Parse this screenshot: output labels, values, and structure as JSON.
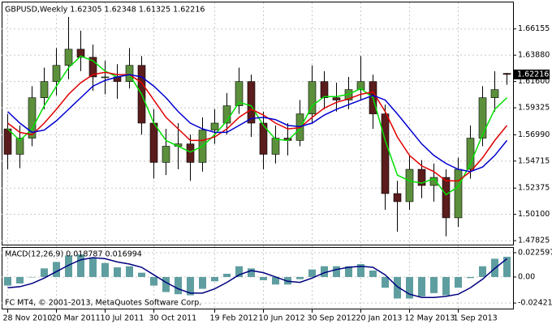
{
  "chart_data": [
    {
      "type": "candlestick",
      "title": "GBPUSD,Weekly  1.62305 1.62348 1.61325 1.62216",
      "categories": [
        "28 Nov 2010",
        null,
        null,
        null,
        "20 Mar 2011",
        null,
        null,
        null,
        "10 Jul 2011",
        null,
        null,
        null,
        "30 Oct 2011",
        null,
        null,
        null,
        null,
        "19 Feb 2012",
        null,
        null,
        null,
        "10 Jun 2012",
        null,
        null,
        null,
        "30 Sep 2012",
        null,
        null,
        null,
        "20 Jan 2013",
        null,
        null,
        null,
        "12 May 2013",
        null,
        null,
        null,
        "1 Sep 2013",
        null,
        null,
        null,
        null
      ],
      "candles": [
        [
          1.575,
          1.588,
          1.54,
          1.553
        ],
        [
          1.553,
          1.578,
          1.541,
          1.567
        ],
        [
          1.567,
          1.612,
          1.56,
          1.602
        ],
        [
          1.602,
          1.628,
          1.592,
          1.616
        ],
        [
          1.616,
          1.645,
          1.604,
          1.63
        ],
        [
          1.63,
          1.672,
          1.618,
          1.644
        ],
        [
          1.644,
          1.66,
          1.625,
          1.637
        ],
        [
          1.637,
          1.648,
          1.608,
          1.62
        ],
        [
          1.62,
          1.634,
          1.605,
          1.62
        ],
        [
          1.62,
          1.631,
          1.601,
          1.616
        ],
        [
          1.616,
          1.645,
          1.61,
          1.63
        ],
        [
          1.63,
          1.638,
          1.57,
          1.58
        ],
        [
          1.58,
          1.592,
          1.532,
          1.546
        ],
        [
          1.546,
          1.575,
          1.535,
          1.56
        ],
        [
          1.56,
          1.58,
          1.54,
          1.562
        ],
        [
          1.562,
          1.57,
          1.53,
          1.546
        ],
        [
          1.546,
          1.585,
          1.538,
          1.574
        ],
        [
          1.574,
          1.592,
          1.562,
          1.58
        ],
        [
          1.58,
          1.606,
          1.57,
          1.595
        ],
        [
          1.595,
          1.628,
          1.588,
          1.616
        ],
        [
          1.616,
          1.622,
          1.568,
          1.58
        ],
        [
          1.58,
          1.59,
          1.54,
          1.553
        ],
        [
          1.553,
          1.578,
          1.545,
          1.567
        ],
        [
          1.567,
          1.58,
          1.552,
          1.565
        ],
        [
          1.565,
          1.6,
          1.56,
          1.588
        ],
        [
          1.588,
          1.63,
          1.58,
          1.616
        ],
        [
          1.616,
          1.625,
          1.592,
          1.602
        ],
        [
          1.602,
          1.615,
          1.59,
          1.6
        ],
        [
          1.6,
          1.62,
          1.592,
          1.609
        ],
        [
          1.609,
          1.638,
          1.6,
          1.616
        ],
        [
          1.616,
          1.622,
          1.575,
          1.588
        ],
        [
          1.588,
          1.596,
          1.505,
          1.519
        ],
        [
          1.519,
          1.53,
          1.486,
          1.512
        ],
        [
          1.512,
          1.552,
          1.505,
          1.54
        ],
        [
          1.54,
          1.548,
          1.515,
          1.526
        ],
        [
          1.526,
          1.545,
          1.512,
          1.533
        ],
        [
          1.533,
          1.54,
          1.482,
          1.498
        ],
        [
          1.498,
          1.55,
          1.49,
          1.54
        ],
        [
          1.54,
          1.578,
          1.532,
          1.567
        ],
        [
          1.567,
          1.612,
          1.56,
          1.602
        ],
        [
          1.602,
          1.625,
          1.59,
          1.609
        ],
        [
          1.62305,
          1.62348,
          1.61325,
          1.62216
        ]
      ],
      "up_color": "#5c8f3c",
      "down_color": "#5a1c1c",
      "series": [
        {
          "color": "#00e000",
          "values": [
            1.575,
            1.565,
            1.575,
            1.595,
            1.612,
            1.628,
            1.638,
            1.634,
            1.625,
            1.62,
            1.622,
            1.605,
            1.58,
            1.565,
            1.56,
            1.555,
            1.56,
            1.57,
            1.582,
            1.598,
            1.595,
            1.578,
            1.566,
            1.565,
            1.575,
            1.595,
            1.603,
            1.603,
            1.605,
            1.61,
            1.602,
            1.565,
            1.535,
            1.53,
            1.528,
            1.532,
            1.518,
            1.525,
            1.545,
            1.57,
            1.592,
            1.602
          ]
        },
        {
          "color": "#e00000",
          "values": [
            1.58,
            1.572,
            1.57,
            1.58,
            1.592,
            1.605,
            1.615,
            1.622,
            1.624,
            1.622,
            1.622,
            1.615,
            1.6,
            1.585,
            1.575,
            1.565,
            1.565,
            1.568,
            1.575,
            1.585,
            1.592,
            1.587,
            1.58,
            1.575,
            1.576,
            1.585,
            1.593,
            1.598,
            1.601,
            1.605,
            1.607,
            1.59,
            1.568,
            1.552,
            1.543,
            1.538,
            1.53,
            1.53,
            1.538,
            1.55,
            1.565,
            1.578
          ]
        },
        {
          "color": "#0000d0",
          "values": [
            1.59,
            1.58,
            1.572,
            1.574,
            1.582,
            1.592,
            1.602,
            1.612,
            1.617,
            1.62,
            1.622,
            1.62,
            1.612,
            1.602,
            1.59,
            1.58,
            1.575,
            1.572,
            1.572,
            1.578,
            1.584,
            1.585,
            1.583,
            1.578,
            1.577,
            1.58,
            1.587,
            1.592,
            1.596,
            1.6,
            1.604,
            1.6,
            1.588,
            1.575,
            1.562,
            1.552,
            1.545,
            1.54,
            1.538,
            1.542,
            1.552,
            1.565
          ]
        }
      ],
      "ylim": [
        1.4748,
        1.6845
      ],
      "yticks": [
        {
          "value": 1.66155,
          "label": "1.66155"
        },
        {
          "value": 1.6388,
          "label": "1.63880"
        },
        {
          "value": 1.616,
          "label": "1.61600"
        },
        {
          "value": 1.59325,
          "label": "1.59325"
        },
        {
          "value": 1.5699,
          "label": "1.56990"
        },
        {
          "value": 1.54715,
          "label": "1.54715"
        },
        {
          "value": 1.52375,
          "label": "1.52375"
        },
        {
          "value": 1.501,
          "label": "1.50100"
        },
        {
          "value": 1.47825,
          "label": "1.47825"
        }
      ],
      "price_label": {
        "value": 1.62216,
        "label": "1.62216"
      },
      "grid": true
    },
    {
      "type": "macd",
      "title": "MACD(12,26,9) 0.018787 0.016994",
      "values": [
        -0.008,
        -0.006,
        0.0,
        0.008,
        0.014,
        0.02,
        0.021,
        0.018,
        0.013,
        0.009,
        0.01,
        0.004,
        -0.008,
        -0.014,
        -0.016,
        -0.017,
        -0.011,
        -0.004,
        0.003,
        0.01,
        0.008,
        -0.003,
        -0.007,
        -0.007,
        -0.002,
        0.007,
        0.01,
        0.01,
        0.01,
        0.012,
        0.006,
        -0.01,
        -0.02,
        -0.02,
        -0.018,
        -0.015,
        -0.017,
        -0.01,
        -0.001,
        0.01,
        0.017,
        0.018787
      ],
      "color": "#5f9ea0",
      "signal": {
        "color": "#000080",
        "values": [
          -0.01,
          -0.009,
          -0.006,
          -0.001,
          0.005,
          0.011,
          0.016,
          0.018,
          0.017,
          0.014,
          0.012,
          0.009,
          0.002,
          -0.005,
          -0.011,
          -0.015,
          -0.015,
          -0.011,
          -0.005,
          0.002,
          0.006,
          0.004,
          0.0,
          -0.004,
          -0.005,
          -0.001,
          0.004,
          0.007,
          0.009,
          0.01,
          0.009,
          0.002,
          -0.009,
          -0.016,
          -0.019,
          -0.019,
          -0.018,
          -0.016,
          -0.01,
          -0.002,
          0.008,
          0.016994
        ]
      },
      "ylim": [
        -0.0294,
        0.0271
      ],
      "yticks": [
        {
          "value": 0.022597,
          "label": "0.022597"
        },
        {
          "value": 0,
          "label": "0.00"
        },
        {
          "value": -0.02421,
          "label": "-0.02421"
        }
      ]
    }
  ],
  "footer": "FC MT4, © 2001-2013, MetaQuotes Software Corp."
}
